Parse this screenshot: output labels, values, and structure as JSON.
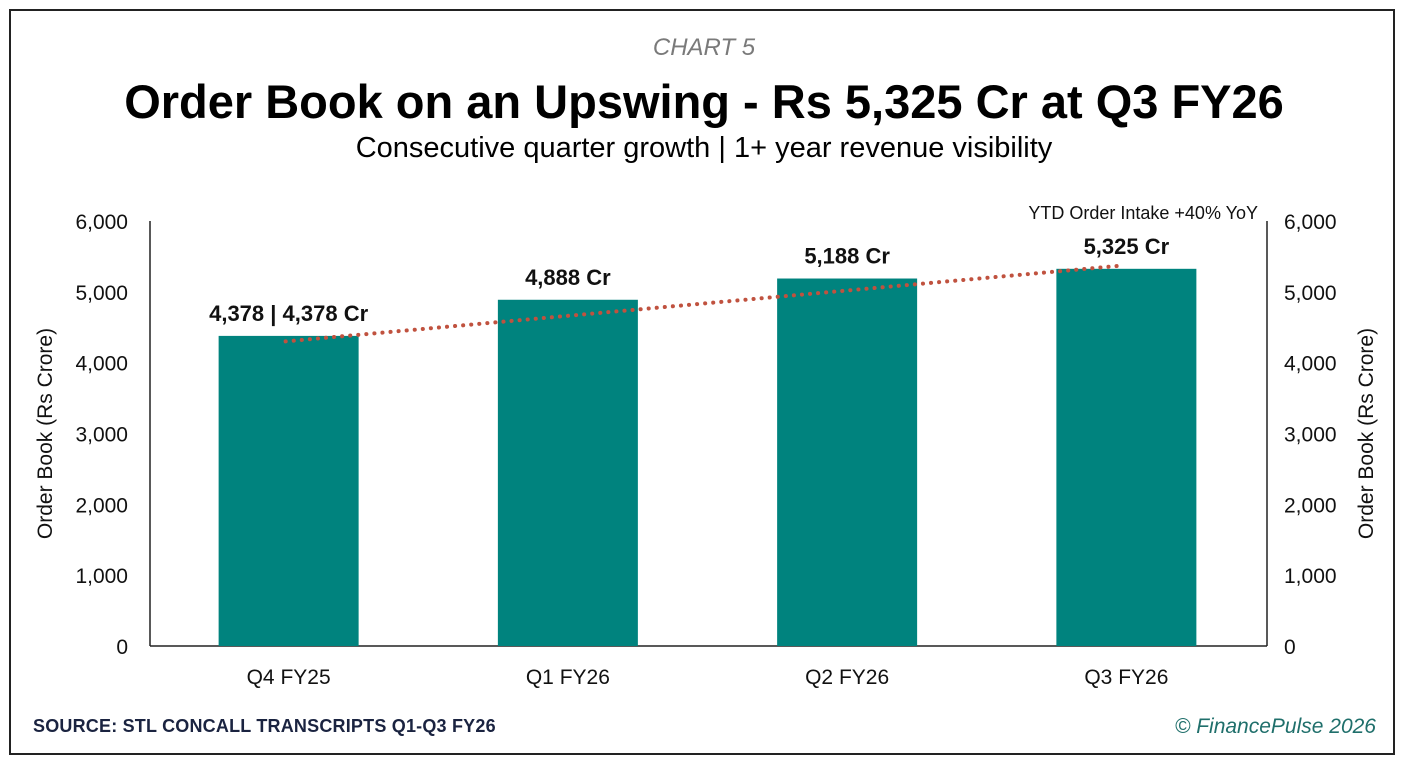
{
  "header": {
    "chart_label": "CHART 5",
    "title": "Order Book on an Upswing - Rs 5,325 Cr at Q3 FY26",
    "subtitle": "Consecutive quarter growth | 1+ year revenue visibility"
  },
  "footer": {
    "source": "SOURCE: STL CONCALL TRANSCRIPTS Q1-Q3 FY26",
    "copyright": "© FinancePulse 2026"
  },
  "colors": {
    "bar": "#00837e",
    "trend": "#c0523f",
    "source_text": "#1a2340",
    "copyright_text": "#1f6f6b"
  },
  "chart_data": {
    "type": "bar",
    "categories": [
      "Q4 FY25",
      "Q1 FY26",
      "Q2 FY26",
      "Q3 FY26"
    ],
    "values": [
      4378,
      4888,
      5188,
      5325
    ],
    "data_labels": [
      "4,378 | 4,378 Cr",
      "4,888 Cr",
      "5,188 Cr",
      "5,325 Cr"
    ],
    "trendline": {
      "style": "dotted",
      "start_value": 4300,
      "end_value": 5370
    },
    "annotation": "YTD Order Intake +40% YoY",
    "ylabel_left": "Order Book (Rs Crore)",
    "ylabel_right": "Order Book (Rs Crore)",
    "ylim": [
      0,
      6000
    ],
    "yticks": [
      0,
      1000,
      2000,
      3000,
      4000,
      5000,
      6000
    ],
    "ytick_labels": [
      "0",
      "1,000",
      "2,000",
      "3,000",
      "4,000",
      "5,000",
      "6,000"
    ],
    "grid": false,
    "legend": "none"
  }
}
